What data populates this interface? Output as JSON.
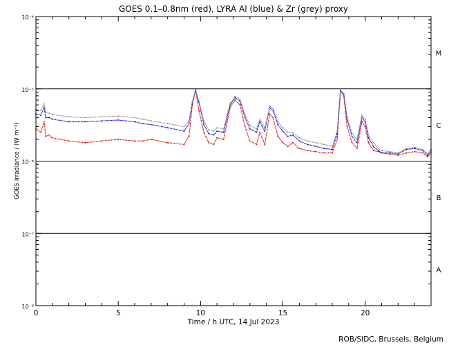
{
  "chart_data": {
    "type": "line",
    "title": "GOES 0.1–0.8nm (red), LYRA Al (blue) & Zr (grey) proxy",
    "xlabel": "Time / h UTC, 14 Jul 2023",
    "ylabel": "GOES Irradiance / (W m⁻²)",
    "xlim": [
      0,
      24
    ],
    "ylim_log10": [
      -8,
      -4
    ],
    "x_ticks": [
      {
        "value": 0,
        "label": "0"
      },
      {
        "value": 5,
        "label": "5"
      },
      {
        "value": 10,
        "label": "10"
      },
      {
        "value": 15,
        "label": "15"
      },
      {
        "value": 20,
        "label": "20"
      }
    ],
    "y_ticks": [
      {
        "exp": -4,
        "label": "10⁻⁴"
      },
      {
        "exp": -5,
        "label": "10⁻⁵"
      },
      {
        "exp": -6,
        "label": "10⁻⁶"
      },
      {
        "exp": -7,
        "label": "10⁻⁷"
      },
      {
        "exp": -8,
        "label": "10⁻⁸"
      }
    ],
    "flare_class_lines": [
      -5,
      -6,
      -7
    ],
    "flare_classes": [
      {
        "label": "M",
        "exp": -4.5
      },
      {
        "label": "C",
        "exp": -5.5
      },
      {
        "label": "B",
        "exp": -6.5
      },
      {
        "label": "A",
        "exp": -7.5
      }
    ],
    "series": [
      {
        "name": "GOES 0.1–0.8nm",
        "color": "#dd0000",
        "x": [
          0,
          0.3,
          0.5,
          0.6,
          0.8,
          1,
          2,
          3,
          4,
          5,
          6,
          6.5,
          7,
          8,
          9,
          9.3,
          9.5,
          9.7,
          9.9,
          10.2,
          10.5,
          10.8,
          11,
          11.4,
          11.8,
          12.1,
          12.4,
          12.7,
          13,
          13.4,
          13.6,
          13.9,
          14.2,
          14.4,
          14.7,
          15,
          15.3,
          15.6,
          16,
          16.5,
          17,
          17.5,
          18,
          18.3,
          18.5,
          18.7,
          18.9,
          19.2,
          19.5,
          19.8,
          20,
          20.2,
          20.5,
          20.8,
          21,
          21.5,
          22,
          22.5,
          23,
          23.5,
          23.8,
          24
        ],
        "y": [
          2.8e-06,
          2.5e-06,
          3.5e-06,
          2.2e-06,
          2.3e-06,
          2.1e-06,
          1.9e-06,
          1.8e-06,
          1.9e-06,
          2e-06,
          1.9e-06,
          1.9e-06,
          2e-06,
          1.8e-06,
          1.7e-06,
          2.2e-06,
          6e-06,
          9.7e-06,
          5e-06,
          2.5e-06,
          1.8e-06,
          1.7e-06,
          2.1e-06,
          2e-06,
          5.5e-06,
          7e-06,
          6e-06,
          3e-06,
          1.9e-06,
          1.7e-06,
          2.5e-06,
          1.7e-06,
          4.5e-06,
          4e-06,
          2.2e-06,
          1.8e-06,
          1.6e-06,
          1.8e-06,
          1.5e-06,
          1.4e-06,
          1.35e-06,
          1.3e-06,
          1.3e-06,
          2e-06,
          9.5e-06,
          8e-06,
          3e-06,
          1.8e-06,
          1.5e-06,
          3.5e-06,
          3e-06,
          1.8e-06,
          1.4e-06,
          1.35e-06,
          1.3e-06,
          1.25e-06,
          1.2e-06,
          1.3e-06,
          1.35e-06,
          1.3e-06,
          1.15e-06,
          1.3e-06
        ]
      },
      {
        "name": "LYRA Al",
        "color": "#0000cc",
        "x": [
          0,
          0.3,
          0.5,
          0.6,
          0.8,
          1,
          2,
          3,
          4,
          5,
          6,
          6.5,
          7,
          8,
          9,
          9.3,
          9.5,
          9.7,
          9.9,
          10.2,
          10.5,
          10.8,
          11,
          11.4,
          11.8,
          12.1,
          12.4,
          12.7,
          13,
          13.4,
          13.6,
          13.9,
          14.2,
          14.4,
          14.7,
          15,
          15.3,
          15.6,
          16,
          16.5,
          17,
          17.5,
          18,
          18.3,
          18.5,
          18.7,
          18.9,
          19.2,
          19.5,
          19.8,
          20,
          20.2,
          20.5,
          20.8,
          21,
          21.5,
          22,
          22.5,
          23,
          23.5,
          23.8,
          24
        ],
        "y": [
          4.5e-06,
          4.3e-06,
          5.5e-06,
          4e-06,
          4e-06,
          3.8e-06,
          3.5e-06,
          3.5e-06,
          3.6e-06,
          3.7e-06,
          3.5e-06,
          3.3e-06,
          3.2e-06,
          2.9e-06,
          2.6e-06,
          3.3e-06,
          6.5e-06,
          9.5e-06,
          6.5e-06,
          3.2e-06,
          2.4e-06,
          2.3e-06,
          2.6e-06,
          2.5e-06,
          6e-06,
          7.5e-06,
          6.8e-06,
          4e-06,
          2.8e-06,
          2.5e-06,
          3.5e-06,
          2.6e-06,
          5.5e-06,
          5e-06,
          3.2e-06,
          2.6e-06,
          2.2e-06,
          2.3e-06,
          1.9e-06,
          1.7e-06,
          1.6e-06,
          1.5e-06,
          1.45e-06,
          2.4e-06,
          9.5e-06,
          8.5e-06,
          3.8e-06,
          2.2e-06,
          1.8e-06,
          4e-06,
          3.5e-06,
          2.1e-06,
          1.6e-06,
          1.4e-06,
          1.3e-06,
          1.3e-06,
          1.25e-06,
          1.45e-06,
          1.5e-06,
          1.4e-06,
          1.2e-06,
          1.4e-06
        ]
      },
      {
        "name": "LYRA Zr",
        "color": "#888888",
        "x": [
          0,
          0.3,
          0.5,
          0.6,
          0.8,
          1,
          2,
          3,
          4,
          5,
          6,
          6.5,
          7,
          8,
          9,
          9.3,
          9.5,
          9.7,
          9.9,
          10.2,
          10.5,
          10.8,
          11,
          11.4,
          11.8,
          12.1,
          12.4,
          12.7,
          13,
          13.4,
          13.6,
          13.9,
          14.2,
          14.4,
          14.7,
          15,
          15.3,
          15.6,
          16,
          16.5,
          17,
          17.5,
          18,
          18.3,
          18.5,
          18.7,
          18.9,
          19.2,
          19.5,
          19.8,
          20,
          20.2,
          20.5,
          20.8,
          21,
          21.5,
          22,
          22.5,
          23,
          23.5,
          23.8,
          24
        ],
        "y": [
          5.2e-06,
          5e-06,
          6.2e-06,
          4.7e-06,
          4.6e-06,
          4.4e-06,
          4.1e-06,
          4e-06,
          4.1e-06,
          4.2e-06,
          4e-06,
          3.8e-06,
          3.6e-06,
          3.3e-06,
          3e-06,
          3.6e-06,
          6.6e-06,
          9.4e-06,
          6.8e-06,
          3.6e-06,
          2.7e-06,
          2.6e-06,
          2.9e-06,
          2.8e-06,
          6.3e-06,
          7.9e-06,
          7.1e-06,
          4.4e-06,
          3.1e-06,
          2.8e-06,
          3.8e-06,
          2.9e-06,
          5.8e-06,
          5.3e-06,
          3.5e-06,
          2.9e-06,
          2.5e-06,
          2.5e-06,
          2.1e-06,
          1.9e-06,
          1.8e-06,
          1.7e-06,
          1.6e-06,
          2.6e-06,
          9.3e-06,
          8.6e-06,
          4.1e-06,
          2.4e-06,
          2e-06,
          4.3e-06,
          3.8e-06,
          2.3e-06,
          1.8e-06,
          1.5e-06,
          1.4e-06,
          1.35e-06,
          1.3e-06,
          1.5e-06,
          1.55e-06,
          1.45e-06,
          1.25e-06,
          1.45e-06
        ]
      }
    ]
  },
  "footer": {
    "credit": "ROB/SIDC, Brussels, Belgium"
  }
}
